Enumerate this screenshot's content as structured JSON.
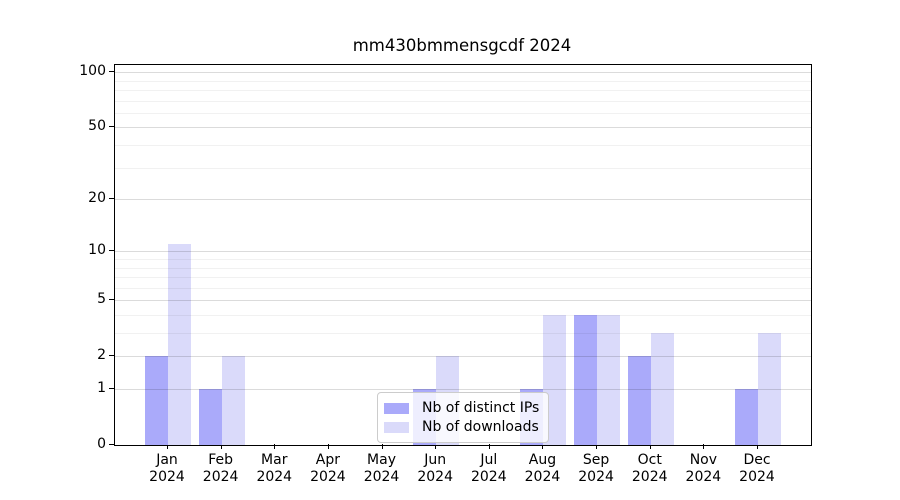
{
  "figure": {
    "background": "#ffffff",
    "text_color": "#000000"
  },
  "chart_data": {
    "type": "bar",
    "title": "mm430bmmensgcdf 2024",
    "categories": [
      "Jan 2024",
      "Feb 2024",
      "Mar 2024",
      "Apr 2024",
      "May 2024",
      "Jun 2024",
      "Jul 2024",
      "Aug 2024",
      "Sep 2024",
      "Oct 2024",
      "Nov 2024",
      "Dec 2024"
    ],
    "series": [
      {
        "name": "Nb of distinct IPs",
        "color": "#aaaafa",
        "values": [
          2,
          1,
          0,
          0,
          0,
          1,
          0,
          1,
          4,
          2,
          0,
          1
        ]
      },
      {
        "name": "Nb of downloads",
        "color": "#dadafa",
        "values": [
          11,
          2,
          0,
          0,
          0,
          2,
          0,
          4,
          4,
          3,
          0,
          3
        ]
      }
    ],
    "xlabel": "",
    "ylabel": "",
    "yscale": "log1p",
    "ylim": [
      0,
      109
    ],
    "y_major_ticks": [
      0,
      1,
      2,
      5,
      10,
      20,
      50,
      100
    ],
    "y_minor_gridlines": [
      3,
      4,
      6,
      7,
      8,
      9,
      30,
      40,
      60,
      70,
      80,
      90
    ],
    "grid": "on",
    "legend": {
      "position": "lower center",
      "labels": [
        "Nb of distinct IPs",
        "Nb of downloads"
      ]
    }
  }
}
